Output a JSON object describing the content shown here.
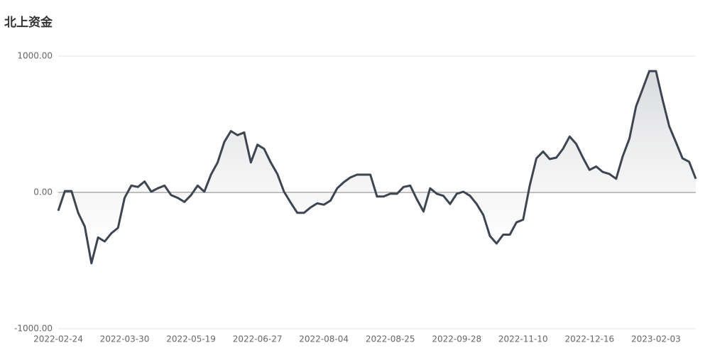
{
  "chart_data": {
    "type": "line",
    "title": "北上资金",
    "categories": [
      "2022-02-24",
      null,
      null,
      null,
      null,
      null,
      null,
      null,
      null,
      null,
      "2022-03-30",
      null,
      null,
      null,
      null,
      null,
      null,
      null,
      null,
      null,
      "2022-05-19",
      null,
      null,
      null,
      null,
      null,
      null,
      null,
      null,
      null,
      "2022-06-27",
      null,
      null,
      null,
      null,
      null,
      null,
      null,
      null,
      null,
      "2022-08-04",
      null,
      null,
      null,
      null,
      null,
      null,
      null,
      null,
      null,
      "2022-08-25",
      null,
      null,
      null,
      null,
      null,
      null,
      null,
      null,
      null,
      "2022-09-28",
      null,
      null,
      null,
      null,
      null,
      null,
      null,
      null,
      null,
      "2022-11-10",
      null,
      null,
      null,
      null,
      null,
      null,
      null,
      null,
      null,
      "2022-12-16",
      null,
      null,
      null,
      null,
      null,
      null,
      null,
      null,
      null,
      "2023-02-03",
      null,
      null,
      null,
      null,
      null,
      null
    ],
    "series": [
      {
        "color": "#3d4551",
        "values": [
          -135,
          10,
          10,
          -150,
          -250,
          -520,
          -330,
          -360,
          -300,
          -260,
          -40,
          50,
          40,
          80,
          5,
          30,
          50,
          -20,
          -40,
          -70,
          -20,
          50,
          5,
          130,
          220,
          370,
          450,
          420,
          440,
          220,
          350,
          320,
          220,
          135,
          5,
          -75,
          -150,
          -150,
          -110,
          -80,
          -90,
          -60,
          30,
          75,
          110,
          130,
          130,
          130,
          -30,
          -30,
          -10,
          -10,
          40,
          50,
          -50,
          -140,
          30,
          -10,
          -25,
          -85,
          -10,
          5,
          -25,
          -85,
          -165,
          -320,
          -375,
          -310,
          -310,
          -220,
          -200,
          50,
          250,
          300,
          245,
          255,
          320,
          410,
          355,
          255,
          165,
          190,
          150,
          135,
          100,
          265,
          395,
          630,
          760,
          890,
          890,
          680,
          485,
          370,
          250,
          225,
          100
        ]
      }
    ],
    "ylim": [
      -1000,
      1000
    ],
    "yticks": [
      {
        "value": -1000,
        "label": "-1000.00"
      },
      {
        "value": 0,
        "label": "0.00"
      },
      {
        "value": 1000,
        "label": "1000.00"
      }
    ],
    "grid": true
  }
}
